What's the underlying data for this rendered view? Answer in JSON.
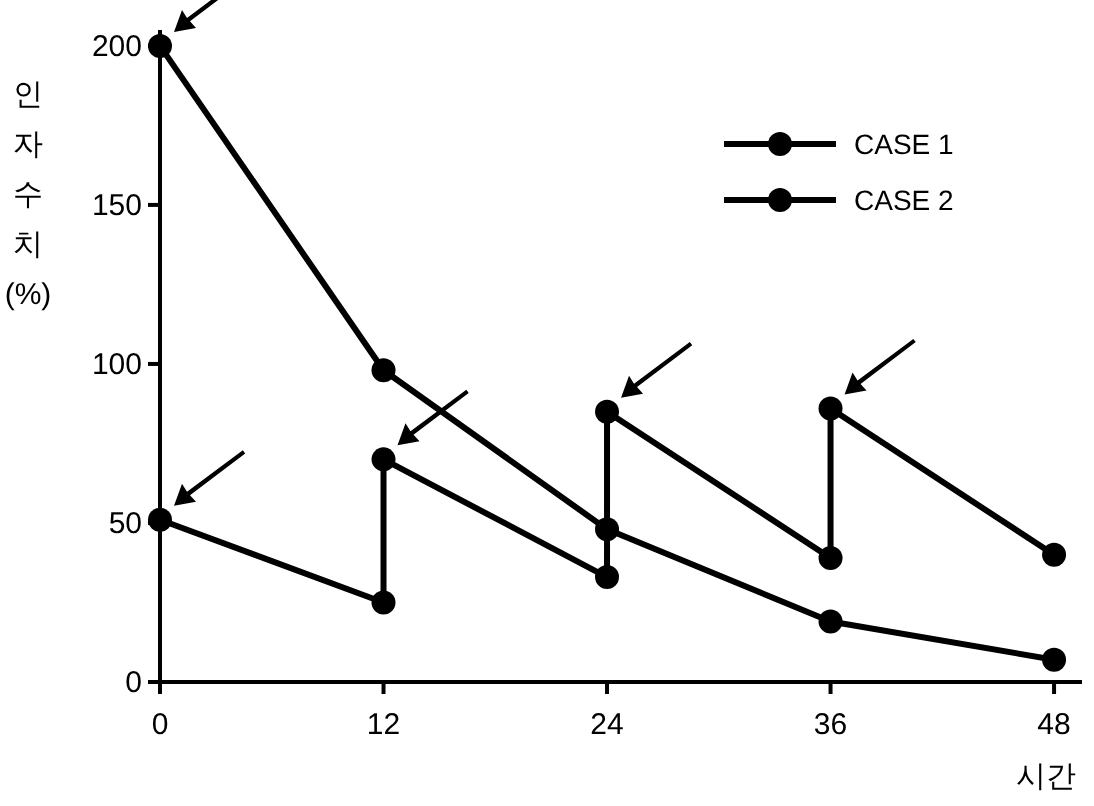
{
  "chart_data": {
    "type": "line",
    "xlabel": "시간",
    "ylabel": "인자수치 (%)",
    "xlim": [
      0,
      49.5
    ],
    "ylim": [
      0,
      205
    ],
    "xticks": [
      0,
      12,
      24,
      36,
      48
    ],
    "yticks": [
      0,
      50,
      100,
      150,
      200
    ],
    "grid": false,
    "legend": "top right",
    "marker": "circle",
    "line_style": "solid",
    "series": [
      {
        "name": "CASE 1",
        "color": "#000000",
        "x": [
          0,
          12,
          24,
          36,
          48
        ],
        "values": [
          200,
          98,
          48,
          19,
          7
        ]
      },
      {
        "name": "CASE 2",
        "color": "#000000",
        "x": [
          0,
          12,
          12,
          24,
          24,
          36,
          36,
          48
        ],
        "values": [
          51,
          25,
          70,
          33,
          85,
          39,
          86,
          40
        ]
      }
    ]
  }
}
